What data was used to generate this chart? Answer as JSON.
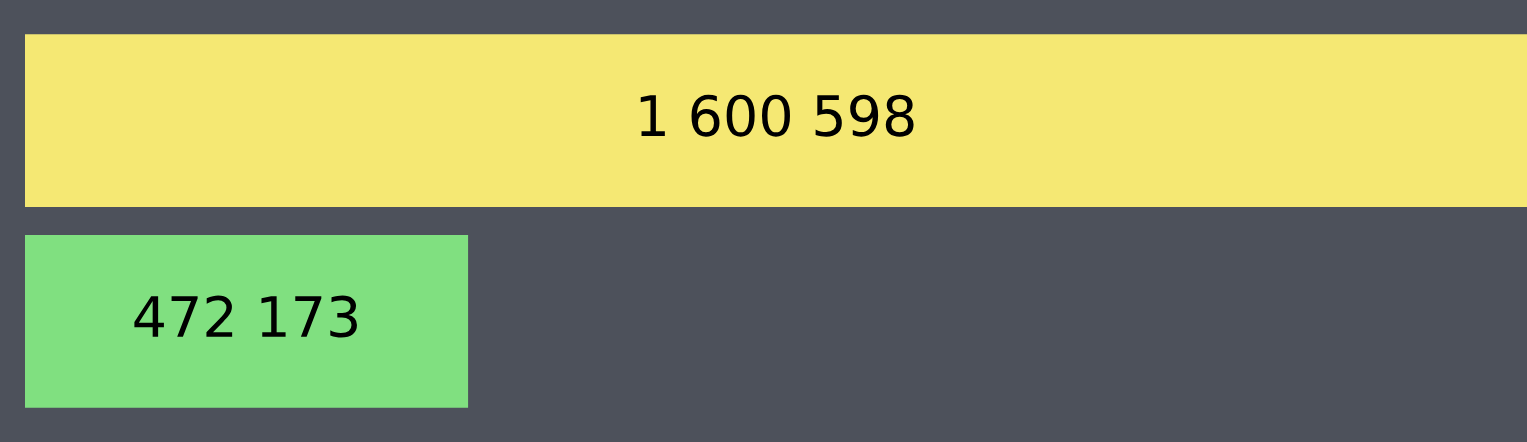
{
  "chart_data": {
    "type": "bar",
    "orientation": "horizontal",
    "categories": [
      null,
      null
    ],
    "values": [
      1600598,
      472173
    ],
    "value_labels": [
      "1 600 598",
      "472 173"
    ],
    "colors": [
      "#f5e873",
      "#80e080"
    ],
    "xlim": [
      0,
      1600598
    ],
    "tick_labels": false,
    "grid": false,
    "legend": false
  }
}
